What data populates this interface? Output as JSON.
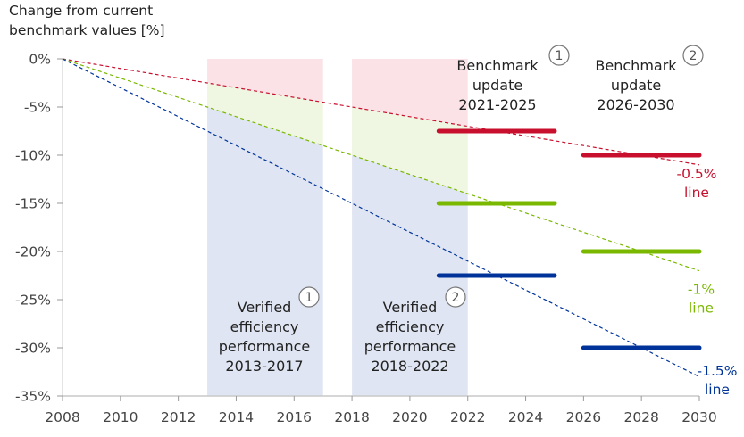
{
  "chart_data": {
    "type": "line",
    "ylabel_lines": [
      "Change from current",
      "benchmark values [%]"
    ],
    "xlim": [
      2008,
      2030
    ],
    "ylim": [
      -35,
      0
    ],
    "x_ticks": [
      2008,
      2010,
      2012,
      2014,
      2016,
      2018,
      2020,
      2022,
      2024,
      2026,
      2028,
      2030
    ],
    "x_tick_labels": [
      "2008",
      "2010",
      "2012",
      "2014",
      "2016",
      "2018",
      "2020",
      "2022",
      "2024",
      "2026",
      "2028",
      "2030"
    ],
    "y_ticks": [
      0,
      -5,
      -10,
      -15,
      -20,
      -25,
      -30,
      -35
    ],
    "y_tick_labels": [
      "0%",
      "-5%",
      "-10%",
      "-15%",
      "-20%",
      "-25%",
      "-30%",
      "-35%"
    ],
    "grid": false,
    "colors": {
      "red": "#c8102e",
      "green": "#7ab800",
      "blue": "#003399"
    },
    "trend_lines": [
      {
        "color": "red",
        "x": [
          2008,
          2030
        ],
        "y": [
          0,
          -11
        ],
        "label_lines": [
          "-0.5%",
          "line"
        ]
      },
      {
        "color": "green",
        "x": [
          2008,
          2030
        ],
        "y": [
          0,
          -22
        ],
        "label_lines": [
          "-1%",
          "line"
        ]
      },
      {
        "color": "blue",
        "x": [
          2008,
          2030
        ],
        "y": [
          0,
          -33
        ],
        "label_lines": [
          "-1.5%",
          "line"
        ]
      }
    ],
    "benchmark_segments": [
      {
        "color": "red",
        "x": [
          2021,
          2025
        ],
        "y": -7.5
      },
      {
        "color": "green",
        "x": [
          2021,
          2025
        ],
        "y": -15
      },
      {
        "color": "blue",
        "x": [
          2021,
          2025
        ],
        "y": -22.5
      },
      {
        "color": "red",
        "x": [
          2026,
          2030
        ],
        "y": -10
      },
      {
        "color": "green",
        "x": [
          2026,
          2030
        ],
        "y": -20
      },
      {
        "color": "blue",
        "x": [
          2026,
          2030
        ],
        "y": -30
      }
    ],
    "periods": [
      {
        "x": [
          2013,
          2017
        ],
        "label_lines": [
          "Verified",
          "efficiency",
          "performance",
          "2013-2017"
        ],
        "badge": "1"
      },
      {
        "x": [
          2018,
          2022
        ],
        "label_lines": [
          "Verified",
          "efficiency",
          "performance",
          "2018-2022"
        ],
        "badge": "2"
      }
    ],
    "benchmark_updates": [
      {
        "label_lines": [
          "Benchmark",
          "update",
          "2021-2025"
        ],
        "badge": "1"
      },
      {
        "label_lines": [
          "Benchmark",
          "update",
          "2026-2030"
        ],
        "badge": "2"
      }
    ]
  }
}
